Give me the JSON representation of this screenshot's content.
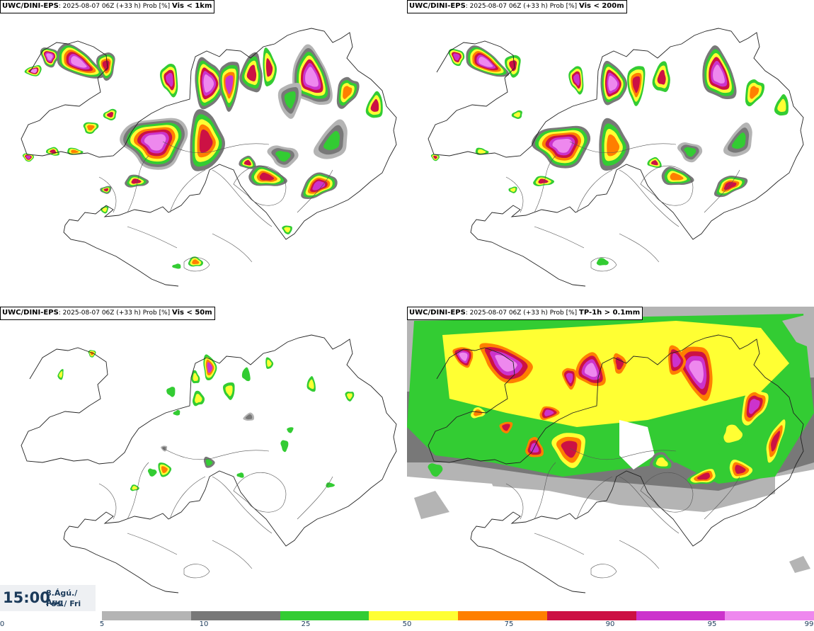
{
  "panels": [
    {
      "model": "UWC/DINI-EPS",
      "meta": ": 2025-08-07 06Z (+33 h) Prob [%]",
      "threshold": "Vis < 1km",
      "kind": "vis1km"
    },
    {
      "model": "UWC/DINI-EPS",
      "meta": ": 2025-08-07 06Z (+33 h) Prob [%]",
      "threshold": "Vis < 200m",
      "kind": "vis200"
    },
    {
      "model": "UWC/DINI-EPS",
      "meta": ": 2025-08-07 06Z (+33 h) Prob [%]",
      "threshold": "Vis < 50m",
      "kind": "vis50"
    },
    {
      "model": "UWC/DINI-EPS",
      "meta": ": 2025-08-07 06Z (+33 h) Prob [%]",
      "threshold": "TP-1h > 0.1mm",
      "kind": "tp"
    }
  ],
  "valid_time": {
    "time": "15:00",
    "date_line1": "8.Ágú./ Aug",
    "date_line2": "Fös./ Fri"
  },
  "legend": {
    "ticks": [
      "0",
      "5",
      "10",
      "25",
      "50",
      "75",
      "90",
      "95",
      "99"
    ],
    "bins": [
      {
        "from": 5,
        "to": 10,
        "color": "#b4b4b4"
      },
      {
        "from": 10,
        "to": 25,
        "color": "#787878"
      },
      {
        "from": 25,
        "to": 50,
        "color": "#33cc33"
      },
      {
        "from": 50,
        "to": 75,
        "color": "#ffff33"
      },
      {
        "from": 75,
        "to": 90,
        "color": "#ff7f00"
      },
      {
        "from": 90,
        "to": 95,
        "color": "#cc1144"
      },
      {
        "from": 95,
        "to": 99,
        "color": "#cc33cc"
      },
      {
        "from": 99,
        "to": 100,
        "color": "#ee88ee"
      }
    ]
  }
}
